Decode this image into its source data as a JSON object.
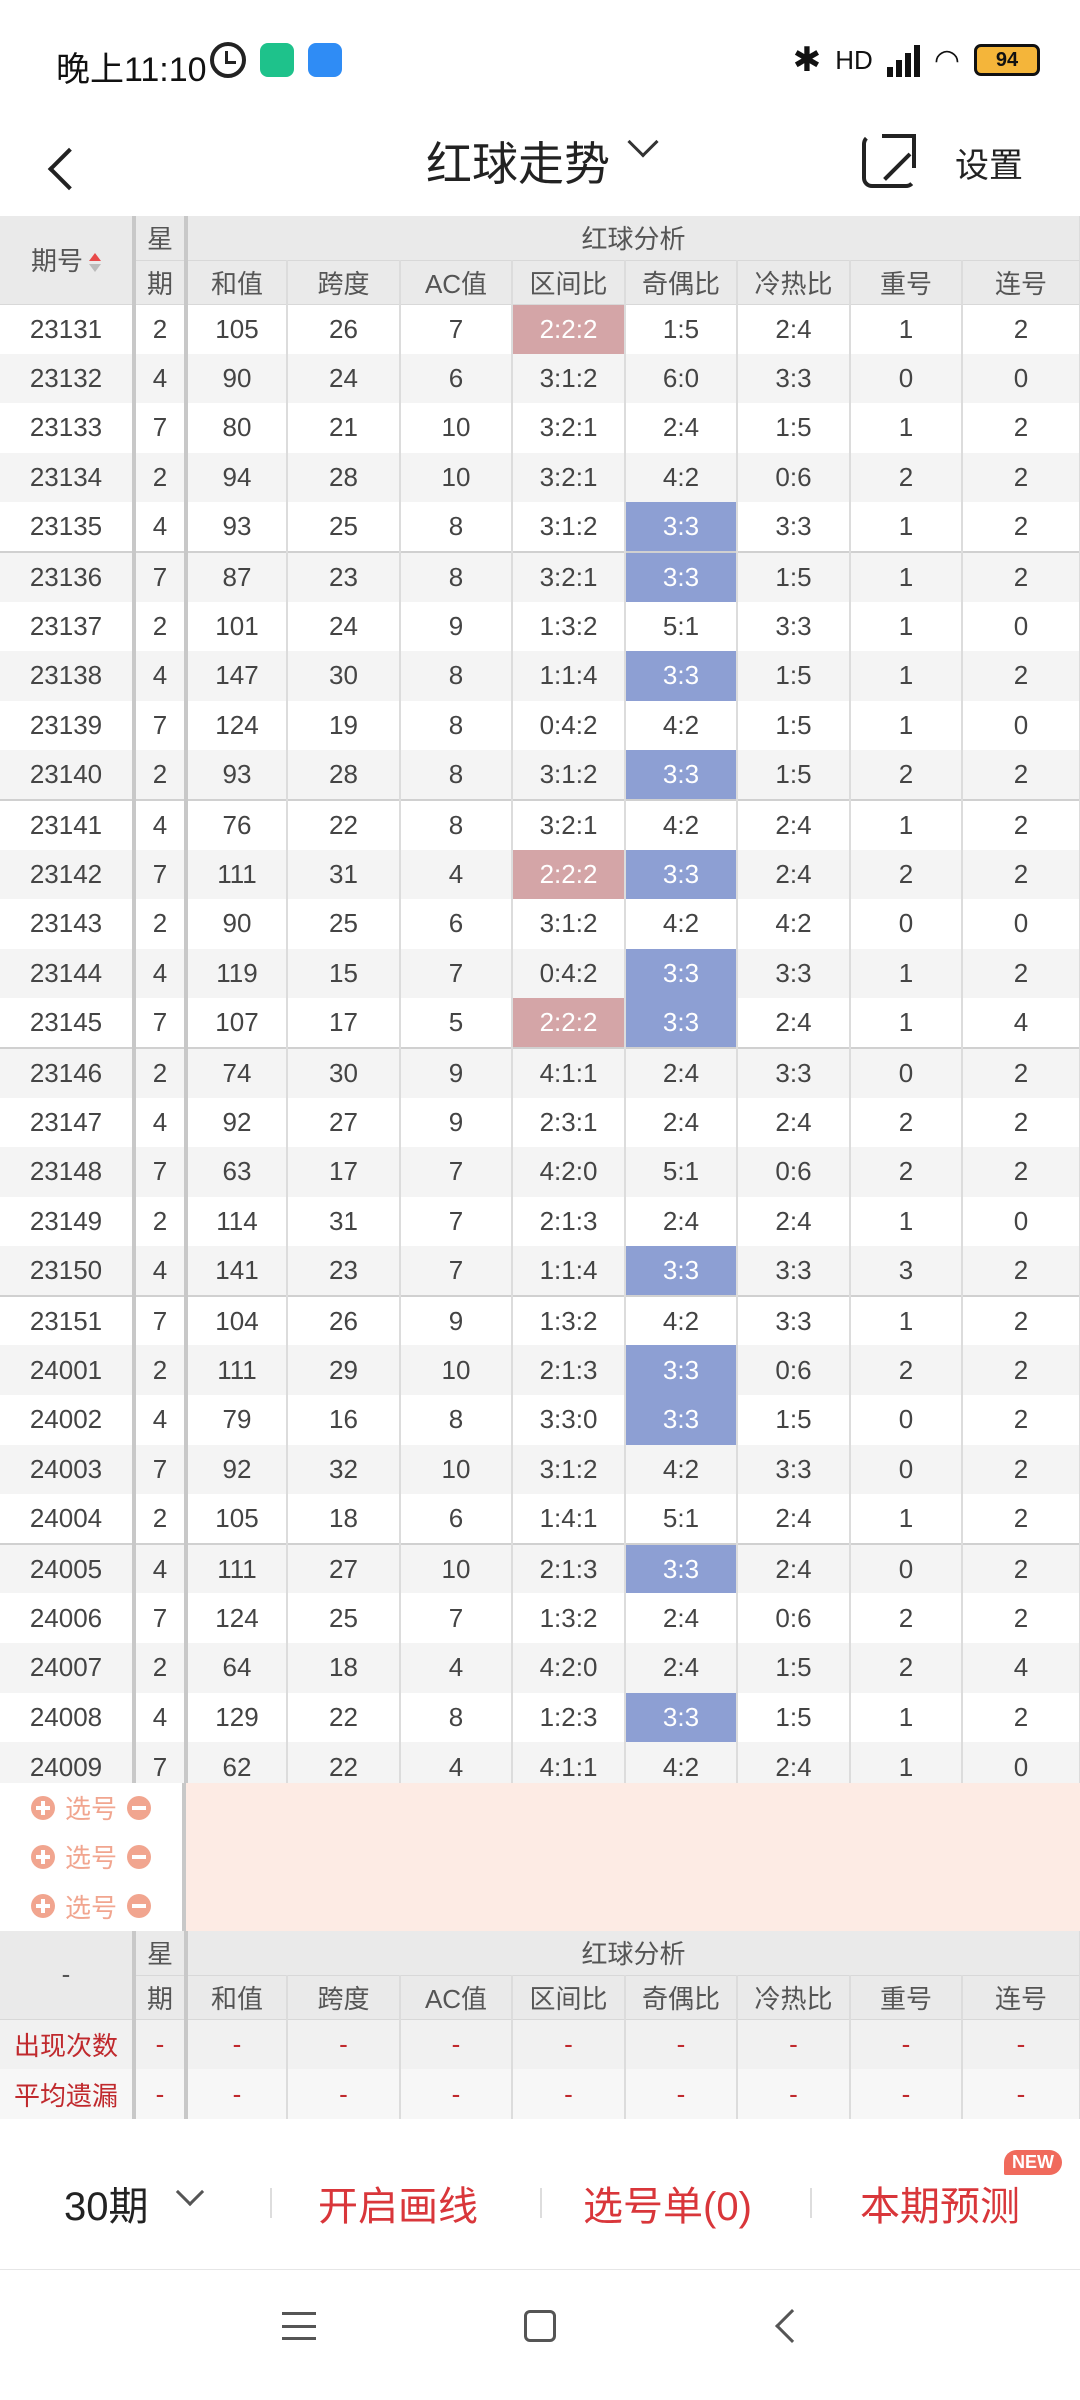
{
  "status_bar": {
    "time": "晚上11:10",
    "network": "HD",
    "battery": "94"
  },
  "header": {
    "title": "红球走势",
    "settings_label": "设置"
  },
  "table": {
    "issue_header": "期号",
    "week_header_top": "星",
    "week_header_bottom": "期",
    "group_header": "红球分析",
    "columns": [
      "和值",
      "跨度",
      "AC值",
      "区间比",
      "奇偶比",
      "冷热比",
      "重号",
      "连号"
    ],
    "rows": [
      {
        "issue": "23131",
        "week": "2",
        "sum": "105",
        "span": "26",
        "ac": "7",
        "zone": "2:2:2",
        "oddeven": "1:5",
        "hotcold": "2:4",
        "repeat": "1",
        "consec": "2",
        "zone_hl": true,
        "oe_hl": false
      },
      {
        "issue": "23132",
        "week": "4",
        "sum": "90",
        "span": "24",
        "ac": "6",
        "zone": "3:1:2",
        "oddeven": "6:0",
        "hotcold": "3:3",
        "repeat": "0",
        "consec": "0",
        "zone_hl": false,
        "oe_hl": false
      },
      {
        "issue": "23133",
        "week": "7",
        "sum": "80",
        "span": "21",
        "ac": "10",
        "zone": "3:2:1",
        "oddeven": "2:4",
        "hotcold": "1:5",
        "repeat": "1",
        "consec": "2",
        "zone_hl": false,
        "oe_hl": false
      },
      {
        "issue": "23134",
        "week": "2",
        "sum": "94",
        "span": "28",
        "ac": "10",
        "zone": "3:2:1",
        "oddeven": "4:2",
        "hotcold": "0:6",
        "repeat": "2",
        "consec": "2",
        "zone_hl": false,
        "oe_hl": false
      },
      {
        "issue": "23135",
        "week": "4",
        "sum": "93",
        "span": "25",
        "ac": "8",
        "zone": "3:1:2",
        "oddeven": "3:3",
        "hotcold": "3:3",
        "repeat": "1",
        "consec": "2",
        "zone_hl": false,
        "oe_hl": true
      },
      {
        "issue": "23136",
        "week": "7",
        "sum": "87",
        "span": "23",
        "ac": "8",
        "zone": "3:2:1",
        "oddeven": "3:3",
        "hotcold": "1:5",
        "repeat": "1",
        "consec": "2",
        "zone_hl": false,
        "oe_hl": true
      },
      {
        "issue": "23137",
        "week": "2",
        "sum": "101",
        "span": "24",
        "ac": "9",
        "zone": "1:3:2",
        "oddeven": "5:1",
        "hotcold": "3:3",
        "repeat": "1",
        "consec": "0",
        "zone_hl": false,
        "oe_hl": false
      },
      {
        "issue": "23138",
        "week": "4",
        "sum": "147",
        "span": "30",
        "ac": "8",
        "zone": "1:1:4",
        "oddeven": "3:3",
        "hotcold": "1:5",
        "repeat": "1",
        "consec": "2",
        "zone_hl": false,
        "oe_hl": true
      },
      {
        "issue": "23139",
        "week": "7",
        "sum": "124",
        "span": "19",
        "ac": "8",
        "zone": "0:4:2",
        "oddeven": "4:2",
        "hotcold": "1:5",
        "repeat": "1",
        "consec": "0",
        "zone_hl": false,
        "oe_hl": false
      },
      {
        "issue": "23140",
        "week": "2",
        "sum": "93",
        "span": "28",
        "ac": "8",
        "zone": "3:1:2",
        "oddeven": "3:3",
        "hotcold": "1:5",
        "repeat": "2",
        "consec": "2",
        "zone_hl": false,
        "oe_hl": true
      },
      {
        "issue": "23141",
        "week": "4",
        "sum": "76",
        "span": "22",
        "ac": "8",
        "zone": "3:2:1",
        "oddeven": "4:2",
        "hotcold": "2:4",
        "repeat": "1",
        "consec": "2",
        "zone_hl": false,
        "oe_hl": false
      },
      {
        "issue": "23142",
        "week": "7",
        "sum": "111",
        "span": "31",
        "ac": "4",
        "zone": "2:2:2",
        "oddeven": "3:3",
        "hotcold": "2:4",
        "repeat": "2",
        "consec": "2",
        "zone_hl": true,
        "oe_hl": true
      },
      {
        "issue": "23143",
        "week": "2",
        "sum": "90",
        "span": "25",
        "ac": "6",
        "zone": "3:1:2",
        "oddeven": "4:2",
        "hotcold": "4:2",
        "repeat": "0",
        "consec": "0",
        "zone_hl": false,
        "oe_hl": false
      },
      {
        "issue": "23144",
        "week": "4",
        "sum": "119",
        "span": "15",
        "ac": "7",
        "zone": "0:4:2",
        "oddeven": "3:3",
        "hotcold": "3:3",
        "repeat": "1",
        "consec": "2",
        "zone_hl": false,
        "oe_hl": true
      },
      {
        "issue": "23145",
        "week": "7",
        "sum": "107",
        "span": "17",
        "ac": "5",
        "zone": "2:2:2",
        "oddeven": "3:3",
        "hotcold": "2:4",
        "repeat": "1",
        "consec": "4",
        "zone_hl": true,
        "oe_hl": true
      },
      {
        "issue": "23146",
        "week": "2",
        "sum": "74",
        "span": "30",
        "ac": "9",
        "zone": "4:1:1",
        "oddeven": "2:4",
        "hotcold": "3:3",
        "repeat": "0",
        "consec": "2",
        "zone_hl": false,
        "oe_hl": false
      },
      {
        "issue": "23147",
        "week": "4",
        "sum": "92",
        "span": "27",
        "ac": "9",
        "zone": "2:3:1",
        "oddeven": "2:4",
        "hotcold": "2:4",
        "repeat": "2",
        "consec": "2",
        "zone_hl": false,
        "oe_hl": false
      },
      {
        "issue": "23148",
        "week": "7",
        "sum": "63",
        "span": "17",
        "ac": "7",
        "zone": "4:2:0",
        "oddeven": "5:1",
        "hotcold": "0:6",
        "repeat": "2",
        "consec": "2",
        "zone_hl": false,
        "oe_hl": false
      },
      {
        "issue": "23149",
        "week": "2",
        "sum": "114",
        "span": "31",
        "ac": "7",
        "zone": "2:1:3",
        "oddeven": "2:4",
        "hotcold": "2:4",
        "repeat": "1",
        "consec": "0",
        "zone_hl": false,
        "oe_hl": false
      },
      {
        "issue": "23150",
        "week": "4",
        "sum": "141",
        "span": "23",
        "ac": "7",
        "zone": "1:1:4",
        "oddeven": "3:3",
        "hotcold": "3:3",
        "repeat": "3",
        "consec": "2",
        "zone_hl": false,
        "oe_hl": true
      },
      {
        "issue": "23151",
        "week": "7",
        "sum": "104",
        "span": "26",
        "ac": "9",
        "zone": "1:3:2",
        "oddeven": "4:2",
        "hotcold": "3:3",
        "repeat": "1",
        "consec": "2",
        "zone_hl": false,
        "oe_hl": false
      },
      {
        "issue": "24001",
        "week": "2",
        "sum": "111",
        "span": "29",
        "ac": "10",
        "zone": "2:1:3",
        "oddeven": "3:3",
        "hotcold": "0:6",
        "repeat": "2",
        "consec": "2",
        "zone_hl": false,
        "oe_hl": true
      },
      {
        "issue": "24002",
        "week": "4",
        "sum": "79",
        "span": "16",
        "ac": "8",
        "zone": "3:3:0",
        "oddeven": "3:3",
        "hotcold": "1:5",
        "repeat": "0",
        "consec": "2",
        "zone_hl": false,
        "oe_hl": true
      },
      {
        "issue": "24003",
        "week": "7",
        "sum": "92",
        "span": "32",
        "ac": "10",
        "zone": "3:1:2",
        "oddeven": "4:2",
        "hotcold": "3:3",
        "repeat": "0",
        "consec": "2",
        "zone_hl": false,
        "oe_hl": false
      },
      {
        "issue": "24004",
        "week": "2",
        "sum": "105",
        "span": "18",
        "ac": "6",
        "zone": "1:4:1",
        "oddeven": "5:1",
        "hotcold": "2:4",
        "repeat": "1",
        "consec": "2",
        "zone_hl": false,
        "oe_hl": false
      },
      {
        "issue": "24005",
        "week": "4",
        "sum": "111",
        "span": "27",
        "ac": "10",
        "zone": "2:1:3",
        "oddeven": "3:3",
        "hotcold": "2:4",
        "repeat": "0",
        "consec": "2",
        "zone_hl": false,
        "oe_hl": true
      },
      {
        "issue": "24006",
        "week": "7",
        "sum": "124",
        "span": "25",
        "ac": "7",
        "zone": "1:3:2",
        "oddeven": "2:4",
        "hotcold": "0:6",
        "repeat": "2",
        "consec": "2",
        "zone_hl": false,
        "oe_hl": false
      },
      {
        "issue": "24007",
        "week": "2",
        "sum": "64",
        "span": "18",
        "ac": "4",
        "zone": "4:2:0",
        "oddeven": "2:4",
        "hotcold": "1:5",
        "repeat": "2",
        "consec": "4",
        "zone_hl": false,
        "oe_hl": false
      },
      {
        "issue": "24008",
        "week": "4",
        "sum": "129",
        "span": "22",
        "ac": "8",
        "zone": "1:2:3",
        "oddeven": "3:3",
        "hotcold": "1:5",
        "repeat": "1",
        "consec": "2",
        "zone_hl": false,
        "oe_hl": true
      },
      {
        "issue": "24009",
        "week": "7",
        "sum": "62",
        "span": "22",
        "ac": "4",
        "zone": "4:1:1",
        "oddeven": "4:2",
        "hotcold": "2:4",
        "repeat": "1",
        "consec": "0",
        "zone_hl": false,
        "oe_hl": false
      }
    ]
  },
  "pick": {
    "label": "选号",
    "count": 3
  },
  "footer_table": {
    "issue_header": "-",
    "week_header_top": "星",
    "week_header_bottom": "期",
    "group_header": "红球分析",
    "columns": [
      "和值",
      "跨度",
      "AC值",
      "区间比",
      "奇偶比",
      "冷热比",
      "重号",
      "连号"
    ],
    "stats": [
      {
        "label": "出现次数",
        "values": [
          "-",
          "-",
          "-",
          "-",
          "-",
          "-",
          "-",
          "-",
          "-"
        ]
      },
      {
        "label": "平均遗漏",
        "values": [
          "-",
          "-",
          "-",
          "-",
          "-",
          "-",
          "-",
          "-",
          "-"
        ]
      }
    ]
  },
  "bottom_bar": {
    "period": "30期",
    "draw_lines": "开启画线",
    "pick_list": "选号单(0)",
    "forecast": "本期预测",
    "new_badge": "NEW"
  },
  "colors": {
    "zone_highlight": "#d4a5a7",
    "oddeven_highlight": "#8d9fd3",
    "accent_red": "#d9363a"
  }
}
